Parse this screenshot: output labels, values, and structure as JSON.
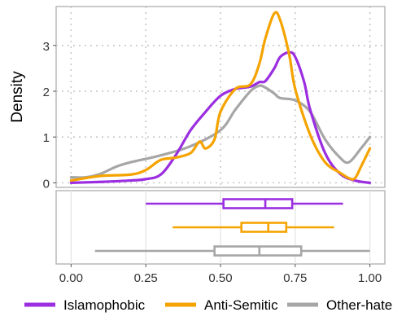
{
  "chart_data": {
    "type": "area",
    "ylabel": "Density",
    "xlabel": "",
    "xlim": [
      -0.05,
      1.05
    ],
    "ylim": [
      -0.1,
      3.85
    ],
    "x_ticks": [
      0.0,
      0.25,
      0.5,
      0.75,
      1.0
    ],
    "x_tick_labels": [
      "0.00",
      "0.25",
      "0.50",
      "0.75",
      "1.00"
    ],
    "y_ticks": [
      0,
      1,
      2,
      3
    ],
    "y_tick_labels": [
      "0",
      "1",
      "2",
      "3"
    ],
    "grid": true,
    "legend_position": "bottom",
    "series": [
      {
        "name": "Islamophobic",
        "color": "#9b2ee0",
        "x": [
          0.0,
          0.1,
          0.2,
          0.25,
          0.3,
          0.35,
          0.4,
          0.45,
          0.5,
          0.55,
          0.6,
          0.63,
          0.65,
          0.68,
          0.7,
          0.73,
          0.75,
          0.78,
          0.8,
          0.85,
          0.9,
          0.95,
          1.0
        ],
        "y": [
          0.0,
          0.02,
          0.05,
          0.08,
          0.18,
          0.6,
          1.15,
          1.55,
          1.9,
          2.05,
          2.1,
          2.2,
          2.22,
          2.5,
          2.75,
          2.85,
          2.75,
          2.2,
          1.6,
          0.65,
          0.2,
          0.05,
          0.0
        ],
        "box": {
          "min": 0.25,
          "q1": 0.51,
          "median": 0.65,
          "q3": 0.74,
          "max": 0.91
        }
      },
      {
        "name": "Anti-Semitic",
        "color": "#f5a300",
        "x": [
          0.0,
          0.1,
          0.2,
          0.25,
          0.3,
          0.35,
          0.4,
          0.43,
          0.45,
          0.48,
          0.5,
          0.55,
          0.6,
          0.63,
          0.65,
          0.68,
          0.7,
          0.73,
          0.75,
          0.8,
          0.85,
          0.9,
          0.93,
          0.95,
          0.97,
          1.0
        ],
        "y": [
          0.05,
          0.15,
          0.18,
          0.28,
          0.5,
          0.55,
          0.65,
          0.9,
          0.75,
          0.95,
          1.55,
          2.05,
          2.15,
          2.6,
          3.15,
          3.7,
          3.55,
          2.8,
          2.05,
          1.05,
          0.45,
          0.22,
          0.1,
          0.1,
          0.35,
          0.75
        ],
        "box": {
          "min": 0.34,
          "q1": 0.57,
          "median": 0.66,
          "q3": 0.72,
          "max": 0.88
        }
      },
      {
        "name": "Other-hate",
        "color": "#a6a6a6",
        "x": [
          0.0,
          0.05,
          0.1,
          0.15,
          0.2,
          0.3,
          0.4,
          0.5,
          0.55,
          0.6,
          0.63,
          0.65,
          0.68,
          0.7,
          0.75,
          0.8,
          0.85,
          0.9,
          0.93,
          0.97,
          1.0
        ],
        "y": [
          0.12,
          0.12,
          0.2,
          0.35,
          0.45,
          0.6,
          0.8,
          1.15,
          1.6,
          2.0,
          2.12,
          2.08,
          1.95,
          1.85,
          1.8,
          1.55,
          0.95,
          0.55,
          0.45,
          0.75,
          1.0
        ],
        "box": {
          "min": 0.08,
          "q1": 0.48,
          "median": 0.63,
          "q3": 0.77,
          "max": 1.0
        }
      }
    ]
  }
}
